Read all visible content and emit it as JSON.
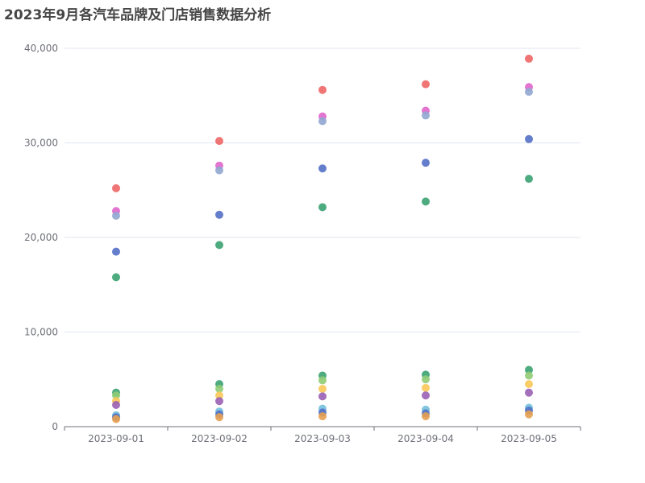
{
  "chart_data": {
    "type": "scatter",
    "title": "2023年9月各汽车品牌及门店销售数据分析",
    "xlabel": "",
    "ylabel": "",
    "x_categories": [
      "2023-09-01",
      "2023-09-02",
      "2023-09-03",
      "2023-09-04",
      "2023-09-05"
    ],
    "ylim": [
      0,
      40000
    ],
    "yticks": [
      0,
      10000,
      20000,
      30000,
      40000
    ],
    "ytick_labels": [
      "0",
      "10,000",
      "20,000",
      "30,000",
      "40,000"
    ],
    "grid": "horizontal",
    "legend": "none",
    "series": [
      {
        "color": "#ee6666",
        "values": [
          25200,
          30200,
          35600,
          36200,
          38900
        ]
      },
      {
        "color": "#e066cc",
        "values": [
          22800,
          27600,
          32800,
          33400,
          35900
        ]
      },
      {
        "color": "#91a7d0",
        "values": [
          22300,
          27100,
          32300,
          32900,
          35400
        ]
      },
      {
        "color": "#5470c6",
        "values": [
          18500,
          22400,
          27300,
          27900,
          30400
        ]
      },
      {
        "color": "#3ba272",
        "values": [
          15800,
          19200,
          23200,
          23800,
          26200
        ]
      },
      {
        "color": "#3ba272",
        "values": [
          3600,
          4500,
          5400,
          5500,
          6000
        ]
      },
      {
        "color": "#91cc75",
        "values": [
          3300,
          4000,
          4900,
          5000,
          5400
        ]
      },
      {
        "color": "#fac858",
        "values": [
          2700,
          3300,
          4000,
          4100,
          4500
        ]
      },
      {
        "color": "#9a60b4",
        "values": [
          2300,
          2700,
          3200,
          3300,
          3600
        ]
      },
      {
        "color": "#73c0de",
        "values": [
          1200,
          1600,
          1900,
          1800,
          2000
        ]
      },
      {
        "color": "#5470c6",
        "values": [
          1000,
          1300,
          1500,
          1400,
          1700
        ]
      },
      {
        "color": "#e5a050",
        "values": [
          800,
          1000,
          1100,
          1100,
          1300
        ]
      }
    ]
  }
}
